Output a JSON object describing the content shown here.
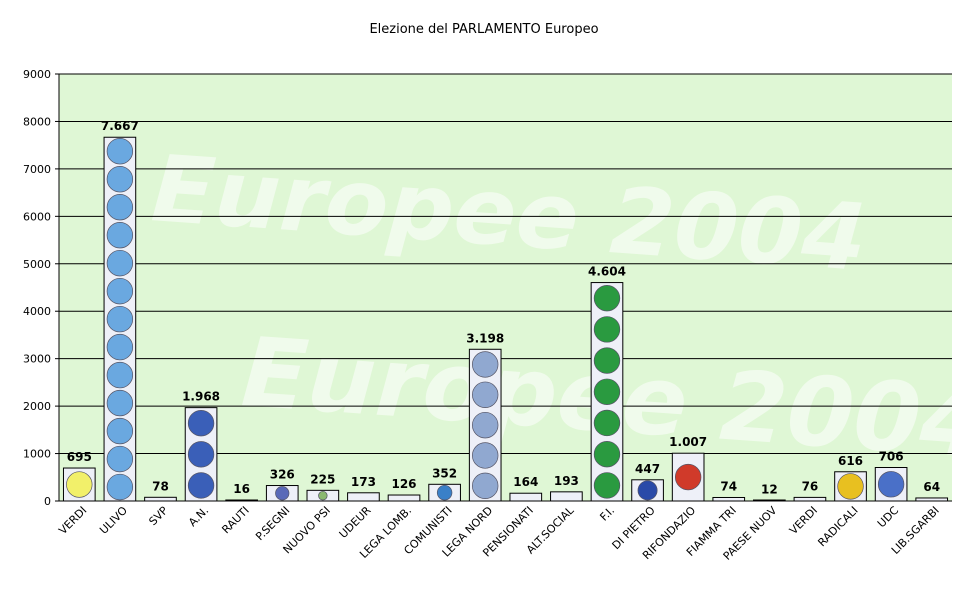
{
  "chart_data": {
    "type": "bar",
    "title": "Elezione del PARLAMENTO Europeo",
    "xlabel": "",
    "ylabel": "",
    "ylim": [
      0,
      9000
    ],
    "yticks": [
      0,
      1000,
      2000,
      3000,
      4000,
      5000,
      6000,
      7000,
      8000,
      9000
    ],
    "grid": true,
    "legend": "none",
    "watermark_lines": [
      "Europee 2004",
      "Europee 2004"
    ],
    "colors": {
      "plot_background": "#dff7d5",
      "grid": "#000000",
      "bar_fill": "#eef0f8",
      "bar_stroke": "#000000"
    },
    "categories": [
      "VERDI",
      "ULIVO",
      "SVP",
      "A.N.",
      "RAUTI",
      "P.SEGNI",
      "NUOVO PSI",
      "UDEUR",
      "LEGA LOMB.",
      "COMUNISTI",
      "LEGA NORD",
      "PENSIONATI",
      "ALT.SOCIAL",
      "F.I.",
      "DI PIETRO",
      "RIFONDAZIO",
      "FIAMMA TRI",
      "PAESE NUOV",
      "VERDI",
      "RADICALI",
      "UDC",
      "LIB.SGARBI"
    ],
    "values": [
      695,
      7667,
      78,
      1968,
      16,
      326,
      225,
      173,
      126,
      352,
      3198,
      164,
      193,
      4604,
      447,
      1007,
      74,
      12,
      76,
      616,
      706,
      64
    ],
    "value_labels": [
      "695",
      "7.667",
      "78",
      "1.968",
      "16",
      "326",
      "225",
      "173",
      "126",
      "352",
      "3.198",
      "164",
      "193",
      "4.604",
      "447",
      "1.007",
      "74",
      "12",
      "76",
      "616",
      "706",
      "64"
    ],
    "logo_colors": [
      "#f2f06a",
      "#6aa8e0",
      "#9ab0d0",
      "#3a5fb8",
      "#cccccc",
      "#5a6ab8",
      "#8ab870",
      "#7a8ac8",
      "#c8d0e8",
      "#3a80c8",
      "#90a8d0",
      "#ffffff",
      "#4a78c8",
      "#2a9a40",
      "#2a4aa8",
      "#d03a2a",
      "#c8c8c8",
      "#d8d8d8",
      "#8ac860",
      "#e8c020",
      "#4a70c8",
      "#e8a070"
    ]
  }
}
